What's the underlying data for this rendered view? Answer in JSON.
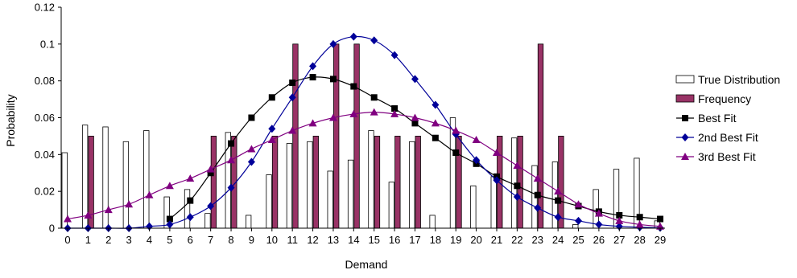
{
  "chart_data": {
    "type": "bar",
    "title": "",
    "xlabel": "Demand",
    "ylabel": "Probability",
    "ylim": [
      0,
      0.12
    ],
    "yticks": [
      "0",
      "0.02",
      "0.04",
      "0.06",
      "0.08",
      "0.1",
      "0.12"
    ],
    "categories": [
      "0",
      "1",
      "2",
      "3",
      "4",
      "5",
      "6",
      "7",
      "8",
      "9",
      "10",
      "11",
      "12",
      "13",
      "14",
      "15",
      "16",
      "17",
      "18",
      "19",
      "20",
      "21",
      "22",
      "23",
      "24",
      "25",
      "26",
      "27",
      "28",
      "29"
    ],
    "grid": false,
    "legend_position": "right",
    "series": [
      {
        "name": "True Distribution",
        "kind": "bar",
        "color": "#ffffff",
        "stroke": "#000000",
        "values": [
          0.041,
          0.056,
          0.055,
          0.047,
          0.053,
          0.017,
          0.021,
          0.008,
          0.052,
          0.007,
          0.029,
          0.046,
          0.047,
          0.031,
          0.037,
          0.053,
          0.025,
          0.047,
          0.007,
          0.06,
          0.023,
          0.028,
          0.049,
          0.034,
          0.036,
          0.002,
          0.021,
          0.032,
          0.038,
          0.004
        ]
      },
      {
        "name": "Frequency",
        "kind": "bar",
        "color": "#993366",
        "stroke": "#000000",
        "values": [
          0,
          0.05,
          0,
          0,
          0,
          0,
          0,
          0.05,
          0.05,
          0,
          0.05,
          0.1,
          0.05,
          0.1,
          0.1,
          0.05,
          0.05,
          0.05,
          0,
          0.05,
          0,
          0.05,
          0.05,
          0.1,
          0.05,
          0,
          0,
          0,
          0,
          0
        ]
      },
      {
        "name": "Best Fit",
        "kind": "line",
        "marker": "square",
        "color": "#000000",
        "values": [
          0,
          0,
          0,
          0,
          0,
          0.005,
          0.015,
          0.03,
          0.046,
          0.06,
          0.071,
          0.079,
          0.082,
          0.081,
          0.077,
          0.071,
          0.065,
          0.057,
          0.049,
          0.041,
          0.035,
          0.028,
          0.023,
          0.018,
          0.015,
          0.012,
          0.009,
          0.007,
          0.006,
          0.005
        ]
      },
      {
        "name": "2nd Best Fit",
        "kind": "line",
        "marker": "diamond",
        "color": "#000099",
        "values": [
          0,
          0,
          0,
          0,
          0.001,
          0.002,
          0.006,
          0.012,
          0.022,
          0.036,
          0.054,
          0.071,
          0.088,
          0.1,
          0.104,
          0.102,
          0.094,
          0.081,
          0.067,
          0.051,
          0.037,
          0.026,
          0.017,
          0.011,
          0.006,
          0.004,
          0.002,
          0.001,
          0.0005,
          0.0002
        ]
      },
      {
        "name": "3rd Best Fit",
        "kind": "line",
        "marker": "triangle",
        "color": "#800080",
        "values": [
          0.005,
          0.007,
          0.01,
          0.013,
          0.018,
          0.023,
          0.027,
          0.032,
          0.037,
          0.043,
          0.048,
          0.053,
          0.057,
          0.06,
          0.062,
          0.063,
          0.062,
          0.06,
          0.057,
          0.053,
          0.048,
          0.041,
          0.034,
          0.027,
          0.02,
          0.013,
          0.008,
          0.004,
          0.002,
          0.001
        ]
      }
    ]
  }
}
